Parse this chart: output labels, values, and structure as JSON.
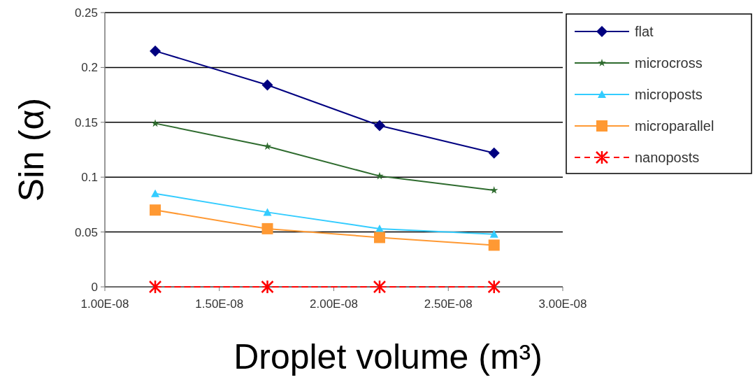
{
  "chart_data": {
    "type": "line",
    "xlabel": "Droplet volume (m³)",
    "ylabel": "Sin (α)",
    "x": [
      1.22e-08,
      1.71e-08,
      2.2e-08,
      2.7e-08
    ],
    "series": [
      {
        "name": "flat",
        "color": "#000080",
        "marker": "diamond",
        "values": [
          0.215,
          0.184,
          0.147,
          0.122
        ]
      },
      {
        "name": "microcross",
        "color": "#2e6b2e",
        "marker": "star",
        "values": [
          0.149,
          0.128,
          0.101,
          0.088
        ]
      },
      {
        "name": "microposts",
        "color": "#33ccff",
        "marker": "triangle",
        "values": [
          0.085,
          0.068,
          0.053,
          0.048
        ]
      },
      {
        "name": "microparallel",
        "color": "#ff9933",
        "marker": "square",
        "values": [
          0.07,
          0.053,
          0.045,
          0.038
        ]
      },
      {
        "name": "nanoposts",
        "color": "#ff0000",
        "marker": "cross",
        "line_style": "dashed",
        "values": [
          0,
          0,
          0,
          0
        ]
      }
    ],
    "xlim": [
      1e-08,
      3e-08
    ],
    "xticks": [
      {
        "value": 1e-08,
        "label": "1.00E-08"
      },
      {
        "value": 1.5e-08,
        "label": "1.50E-08"
      },
      {
        "value": 2e-08,
        "label": "2.00E-08"
      },
      {
        "value": 2.5e-08,
        "label": "2.50E-08"
      },
      {
        "value": 3e-08,
        "label": "3.00E-08"
      }
    ],
    "ylim": [
      0,
      0.25
    ],
    "yticks": [
      0,
      0.05,
      0.1,
      0.15,
      0.2,
      0.25
    ],
    "grid": "y",
    "legend": "top right"
  }
}
